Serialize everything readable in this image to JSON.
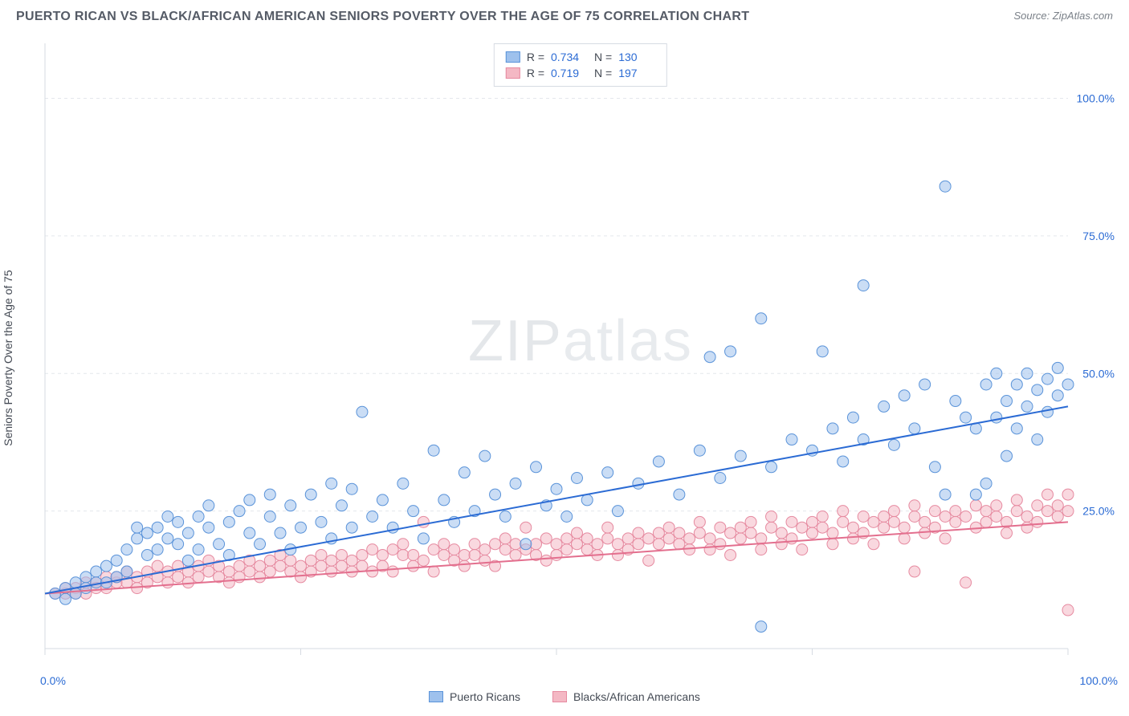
{
  "title": "PUERTO RICAN VS BLACK/AFRICAN AMERICAN SENIORS POVERTY OVER THE AGE OF 75 CORRELATION CHART",
  "source": "Source: ZipAtlas.com",
  "ylabel": "Seniors Poverty Over the Age of 75",
  "watermark_a": "ZIP",
  "watermark_b": "atlas",
  "chart": {
    "type": "scatter",
    "xlim": [
      0,
      100
    ],
    "ylim": [
      0,
      110
    ],
    "ytick_values": [
      25,
      50,
      75,
      100
    ],
    "ytick_labels": [
      "25.0%",
      "50.0%",
      "75.0%",
      "100.0%"
    ],
    "x_corner_labels": [
      "0.0%",
      "100.0%"
    ],
    "xtick_positions": [
      0,
      25,
      50,
      75,
      100
    ],
    "grid_color": "#e4e7ec",
    "axis_color": "#d6dbe2",
    "background_color": "#ffffff",
    "marker_radius": 7,
    "marker_opacity": 0.55,
    "line_width": 2,
    "series": [
      {
        "name": "Puerto Ricans",
        "color_fill": "#9ec1ed",
        "color_stroke": "#5a93d9",
        "line_color": "#2b6bd4",
        "R": "0.734",
        "N": "130",
        "trend": {
          "x1": 0,
          "y1": 10,
          "x2": 100,
          "y2": 44
        },
        "points": [
          [
            1,
            10
          ],
          [
            2,
            11
          ],
          [
            2,
            9
          ],
          [
            3,
            12
          ],
          [
            3,
            10
          ],
          [
            4,
            13
          ],
          [
            4,
            11
          ],
          [
            5,
            14
          ],
          [
            5,
            12
          ],
          [
            6,
            15
          ],
          [
            6,
            12
          ],
          [
            7,
            16
          ],
          [
            7,
            13
          ],
          [
            8,
            18
          ],
          [
            8,
            14
          ],
          [
            9,
            20
          ],
          [
            9,
            22
          ],
          [
            10,
            17
          ],
          [
            10,
            21
          ],
          [
            11,
            22
          ],
          [
            11,
            18
          ],
          [
            12,
            20
          ],
          [
            12,
            24
          ],
          [
            13,
            19
          ],
          [
            13,
            23
          ],
          [
            14,
            16
          ],
          [
            14,
            21
          ],
          [
            15,
            24
          ],
          [
            15,
            18
          ],
          [
            16,
            22
          ],
          [
            16,
            26
          ],
          [
            17,
            19
          ],
          [
            18,
            23
          ],
          [
            18,
            17
          ],
          [
            19,
            25
          ],
          [
            20,
            21
          ],
          [
            20,
            27
          ],
          [
            21,
            19
          ],
          [
            22,
            24
          ],
          [
            22,
            28
          ],
          [
            23,
            21
          ],
          [
            24,
            26
          ],
          [
            24,
            18
          ],
          [
            25,
            22
          ],
          [
            26,
            28
          ],
          [
            27,
            23
          ],
          [
            28,
            20
          ],
          [
            28,
            30
          ],
          [
            29,
            26
          ],
          [
            30,
            22
          ],
          [
            30,
            29
          ],
          [
            31,
            43
          ],
          [
            32,
            24
          ],
          [
            33,
            27
          ],
          [
            34,
            22
          ],
          [
            35,
            30
          ],
          [
            36,
            25
          ],
          [
            37,
            20
          ],
          [
            38,
            36
          ],
          [
            39,
            27
          ],
          [
            40,
            23
          ],
          [
            41,
            32
          ],
          [
            42,
            25
          ],
          [
            43,
            35
          ],
          [
            44,
            28
          ],
          [
            45,
            24
          ],
          [
            46,
            30
          ],
          [
            47,
            19
          ],
          [
            48,
            33
          ],
          [
            49,
            26
          ],
          [
            50,
            29
          ],
          [
            51,
            24
          ],
          [
            52,
            31
          ],
          [
            53,
            27
          ],
          [
            55,
            32
          ],
          [
            56,
            25
          ],
          [
            58,
            30
          ],
          [
            60,
            34
          ],
          [
            62,
            28
          ],
          [
            64,
            36
          ],
          [
            65,
            53
          ],
          [
            66,
            31
          ],
          [
            67,
            54
          ],
          [
            68,
            35
          ],
          [
            70,
            60
          ],
          [
            70,
            4
          ],
          [
            71,
            33
          ],
          [
            73,
            38
          ],
          [
            75,
            36
          ],
          [
            76,
            54
          ],
          [
            77,
            40
          ],
          [
            78,
            34
          ],
          [
            79,
            42
          ],
          [
            80,
            66
          ],
          [
            80,
            38
          ],
          [
            82,
            44
          ],
          [
            83,
            37
          ],
          [
            84,
            46
          ],
          [
            85,
            40
          ],
          [
            86,
            48
          ],
          [
            87,
            33
          ],
          [
            88,
            28
          ],
          [
            88,
            84
          ],
          [
            89,
            45
          ],
          [
            90,
            42
          ],
          [
            91,
            28
          ],
          [
            91,
            40
          ],
          [
            92,
            48
          ],
          [
            92,
            30
          ],
          [
            93,
            42
          ],
          [
            93,
            50
          ],
          [
            94,
            35
          ],
          [
            94,
            45
          ],
          [
            95,
            40
          ],
          [
            95,
            48
          ],
          [
            96,
            44
          ],
          [
            96,
            50
          ],
          [
            97,
            38
          ],
          [
            97,
            47
          ],
          [
            98,
            49
          ],
          [
            98,
            43
          ],
          [
            99,
            46
          ],
          [
            99,
            51
          ],
          [
            100,
            48
          ]
        ]
      },
      {
        "name": "Blacks/African Americans",
        "color_fill": "#f4b8c4",
        "color_stroke": "#e68aa0",
        "line_color": "#e36f8e",
        "R": "0.719",
        "N": "197",
        "trend": {
          "x1": 0,
          "y1": 10,
          "x2": 100,
          "y2": 23
        },
        "points": [
          [
            1,
            10
          ],
          [
            2,
            10
          ],
          [
            2,
            11
          ],
          [
            3,
            11
          ],
          [
            3,
            10
          ],
          [
            4,
            12
          ],
          [
            4,
            10
          ],
          [
            5,
            12
          ],
          [
            5,
            11
          ],
          [
            6,
            13
          ],
          [
            6,
            11
          ],
          [
            7,
            12
          ],
          [
            7,
            13
          ],
          [
            8,
            14
          ],
          [
            8,
            12
          ],
          [
            9,
            13
          ],
          [
            9,
            11
          ],
          [
            10,
            14
          ],
          [
            10,
            12
          ],
          [
            11,
            13
          ],
          [
            11,
            15
          ],
          [
            12,
            14
          ],
          [
            12,
            12
          ],
          [
            13,
            15
          ],
          [
            13,
            13
          ],
          [
            14,
            14
          ],
          [
            14,
            12
          ],
          [
            15,
            15
          ],
          [
            15,
            13
          ],
          [
            16,
            14
          ],
          [
            16,
            16
          ],
          [
            17,
            13
          ],
          [
            17,
            15
          ],
          [
            18,
            14
          ],
          [
            18,
            12
          ],
          [
            19,
            15
          ],
          [
            19,
            13
          ],
          [
            20,
            16
          ],
          [
            20,
            14
          ],
          [
            21,
            15
          ],
          [
            21,
            13
          ],
          [
            22,
            16
          ],
          [
            22,
            14
          ],
          [
            23,
            15
          ],
          [
            23,
            17
          ],
          [
            24,
            14
          ],
          [
            24,
            16
          ],
          [
            25,
            15
          ],
          [
            25,
            13
          ],
          [
            26,
            16
          ],
          [
            26,
            14
          ],
          [
            27,
            17
          ],
          [
            27,
            15
          ],
          [
            28,
            14
          ],
          [
            28,
            16
          ],
          [
            29,
            17
          ],
          [
            29,
            15
          ],
          [
            30,
            16
          ],
          [
            30,
            14
          ],
          [
            31,
            17
          ],
          [
            31,
            15
          ],
          [
            32,
            18
          ],
          [
            32,
            14
          ],
          [
            33,
            17
          ],
          [
            33,
            15
          ],
          [
            34,
            18
          ],
          [
            34,
            14
          ],
          [
            35,
            17
          ],
          [
            35,
            19
          ],
          [
            36,
            15
          ],
          [
            36,
            17
          ],
          [
            37,
            23
          ],
          [
            37,
            16
          ],
          [
            38,
            18
          ],
          [
            38,
            14
          ],
          [
            39,
            17
          ],
          [
            39,
            19
          ],
          [
            40,
            16
          ],
          [
            40,
            18
          ],
          [
            41,
            17
          ],
          [
            41,
            15
          ],
          [
            42,
            19
          ],
          [
            42,
            17
          ],
          [
            43,
            18
          ],
          [
            43,
            16
          ],
          [
            44,
            19
          ],
          [
            44,
            15
          ],
          [
            45,
            18
          ],
          [
            45,
            20
          ],
          [
            46,
            17
          ],
          [
            46,
            19
          ],
          [
            47,
            18
          ],
          [
            47,
            22
          ],
          [
            48,
            17
          ],
          [
            48,
            19
          ],
          [
            49,
            20
          ],
          [
            49,
            16
          ],
          [
            50,
            19
          ],
          [
            50,
            17
          ],
          [
            51,
            20
          ],
          [
            51,
            18
          ],
          [
            52,
            19
          ],
          [
            52,
            21
          ],
          [
            53,
            18
          ],
          [
            53,
            20
          ],
          [
            54,
            19
          ],
          [
            54,
            17
          ],
          [
            55,
            20
          ],
          [
            55,
            22
          ],
          [
            56,
            19
          ],
          [
            56,
            17
          ],
          [
            57,
            20
          ],
          [
            57,
            18
          ],
          [
            58,
            21
          ],
          [
            58,
            19
          ],
          [
            59,
            20
          ],
          [
            59,
            16
          ],
          [
            60,
            21
          ],
          [
            60,
            19
          ],
          [
            61,
            20
          ],
          [
            61,
            22
          ],
          [
            62,
            19
          ],
          [
            62,
            21
          ],
          [
            63,
            20
          ],
          [
            63,
            18
          ],
          [
            64,
            21
          ],
          [
            64,
            23
          ],
          [
            65,
            20
          ],
          [
            65,
            18
          ],
          [
            66,
            22
          ],
          [
            66,
            19
          ],
          [
            67,
            21
          ],
          [
            67,
            17
          ],
          [
            68,
            22
          ],
          [
            68,
            20
          ],
          [
            69,
            21
          ],
          [
            69,
            23
          ],
          [
            70,
            20
          ],
          [
            70,
            18
          ],
          [
            71,
            22
          ],
          [
            71,
            24
          ],
          [
            72,
            21
          ],
          [
            72,
            19
          ],
          [
            73,
            23
          ],
          [
            73,
            20
          ],
          [
            74,
            22
          ],
          [
            74,
            18
          ],
          [
            75,
            23
          ],
          [
            75,
            21
          ],
          [
            76,
            22
          ],
          [
            76,
            24
          ],
          [
            77,
            21
          ],
          [
            77,
            19
          ],
          [
            78,
            23
          ],
          [
            78,
            25
          ],
          [
            79,
            22
          ],
          [
            79,
            20
          ],
          [
            80,
            24
          ],
          [
            80,
            21
          ],
          [
            81,
            23
          ],
          [
            81,
            19
          ],
          [
            82,
            24
          ],
          [
            82,
            22
          ],
          [
            83,
            23
          ],
          [
            83,
            25
          ],
          [
            84,
            22
          ],
          [
            84,
            20
          ],
          [
            85,
            24
          ],
          [
            85,
            26
          ],
          [
            85,
            14
          ],
          [
            86,
            23
          ],
          [
            86,
            21
          ],
          [
            87,
            25
          ],
          [
            87,
            22
          ],
          [
            88,
            24
          ],
          [
            88,
            20
          ],
          [
            89,
            25
          ],
          [
            89,
            23
          ],
          [
            90,
            24
          ],
          [
            90,
            12
          ],
          [
            91,
            26
          ],
          [
            91,
            22
          ],
          [
            92,
            25
          ],
          [
            92,
            23
          ],
          [
            93,
            24
          ],
          [
            93,
            26
          ],
          [
            94,
            23
          ],
          [
            94,
            21
          ],
          [
            95,
            25
          ],
          [
            95,
            27
          ],
          [
            96,
            24
          ],
          [
            96,
            22
          ],
          [
            97,
            26
          ],
          [
            97,
            23
          ],
          [
            98,
            25
          ],
          [
            98,
            28
          ],
          [
            99,
            24
          ],
          [
            99,
            26
          ],
          [
            100,
            25
          ],
          [
            100,
            7
          ],
          [
            100,
            28
          ]
        ]
      }
    ]
  },
  "legend": {
    "series1_label": "Puerto Ricans",
    "series2_label": "Blacks/African Americans"
  }
}
